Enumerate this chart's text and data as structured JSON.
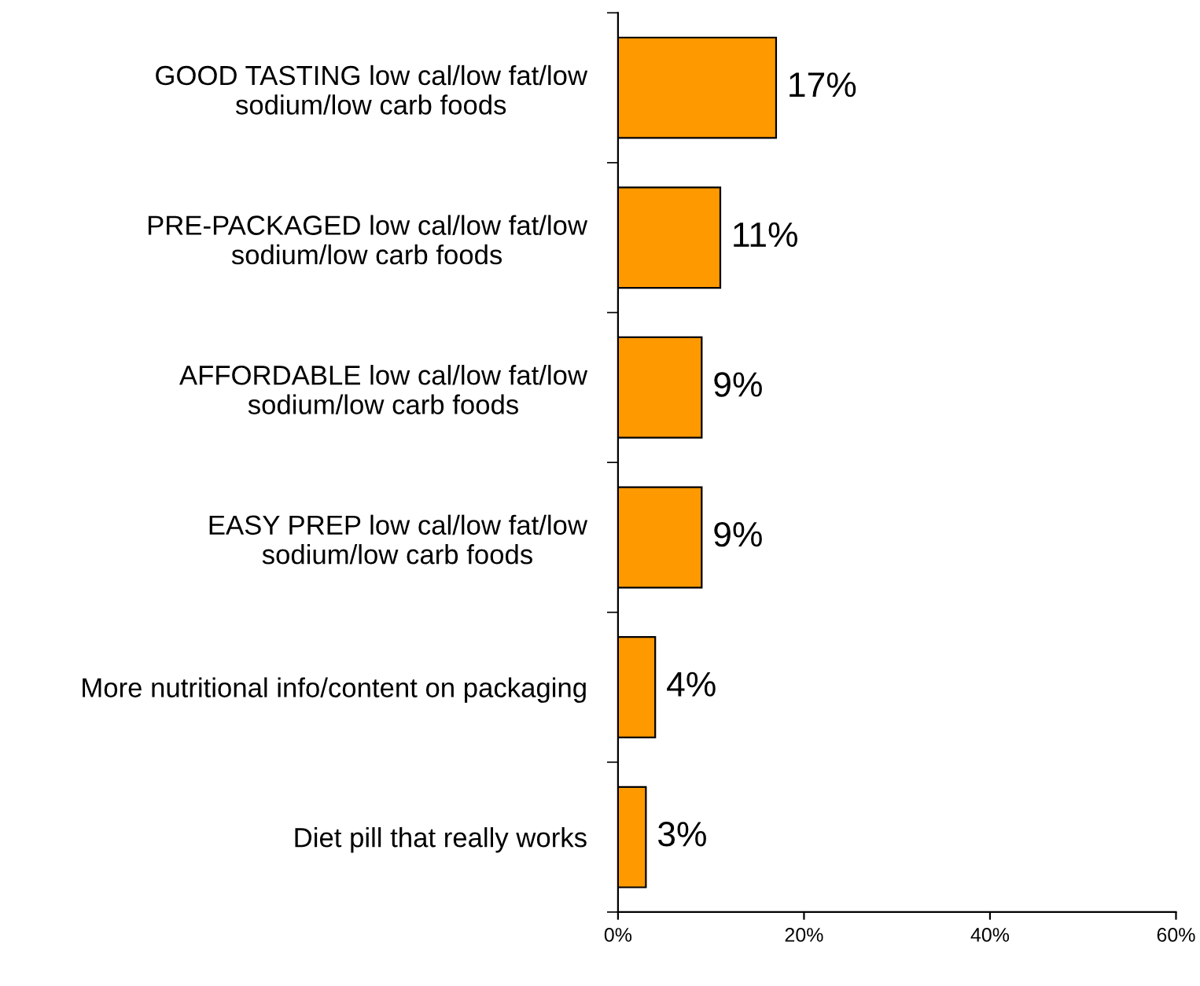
{
  "chart_data": {
    "type": "bar",
    "orientation": "horizontal",
    "categories": [
      "GOOD TASTING low cal/low fat/low\nsodium/low carb foods",
      "PRE-PACKAGED low cal/low fat/low\nsodium/low carb foods",
      "AFFORDABLE low cal/low fat/low\nsodium/low carb foods",
      "EASY PREP low cal/low fat/low\nsodium/low carb foods",
      "More nutritional info/content on packaging",
      "Diet pill that really works"
    ],
    "values": [
      17,
      11,
      9,
      9,
      4,
      3
    ],
    "value_labels": [
      "17%",
      "11%",
      "9%",
      "9%",
      "4%",
      "3%"
    ],
    "color": "#ff9900",
    "xlim": [
      0,
      60
    ],
    "xticks": [
      {
        "value": 0,
        "label": "0%"
      },
      {
        "value": 20,
        "label": "20%"
      },
      {
        "value": 40,
        "label": "40%"
      },
      {
        "value": 60,
        "label": "60%"
      }
    ],
    "grid": false,
    "legend": false
  }
}
